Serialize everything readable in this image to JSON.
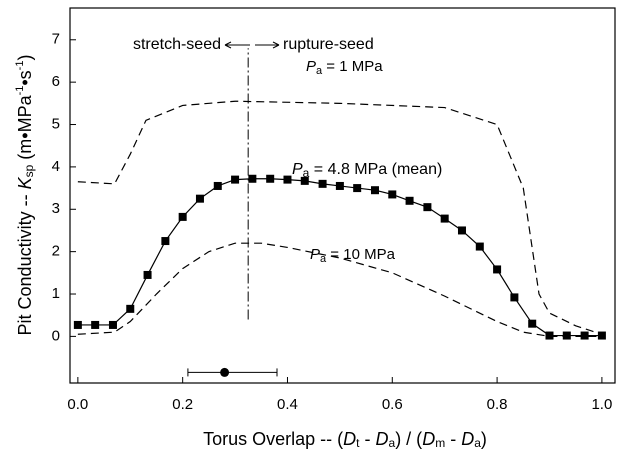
{
  "chart_data": {
    "type": "line",
    "y_label": [
      "Pit Conductivity -- ",
      "K",
      "sp",
      " (m•MPa",
      "-1",
      "•s",
      "-1",
      ")"
    ],
    "x_label": [
      "Torus Overlap -- (",
      "D",
      "t",
      " - ",
      "D",
      "a",
      ") / (",
      "D",
      "m",
      " - ",
      "D",
      "a",
      ")"
    ],
    "annotations": [
      "stretch-seed",
      "rupture-seed"
    ],
    "xlim": [
      -0.015,
      1.025
    ],
    "ylim": [
      -1.1,
      7.75
    ],
    "xticks": [
      {
        "value": 0,
        "label": "0.0"
      },
      {
        "value": 0.2,
        "label": "0.2"
      },
      {
        "value": 0.4,
        "label": "0.4"
      },
      {
        "value": 0.6,
        "label": "0.6"
      },
      {
        "value": 0.8,
        "label": "0.8"
      },
      {
        "value": 1,
        "label": "1.0"
      }
    ],
    "yticks": [
      0,
      1,
      2,
      3,
      4,
      5,
      6,
      7
    ],
    "series": [
      {
        "label": [
          "P",
          "a",
          " = 1 MPa"
        ],
        "color": "#000",
        "dashed": true,
        "markers": false,
        "x": [
          0,
          0.07,
          0.1,
          0.13,
          0.2,
          0.3,
          0.5,
          0.7,
          0.8,
          0.85,
          0.88,
          0.9,
          0.95,
          1.0
        ],
        "values": [
          3.65,
          3.6,
          4.3,
          5.1,
          5.45,
          5.55,
          5.5,
          5.4,
          5.0,
          3.5,
          1.0,
          0.55,
          0.25,
          0.05
        ]
      },
      {
        "label": [
          "P",
          "a",
          " = 4.8 MPa  (mean)"
        ],
        "color": "#000",
        "dashed": false,
        "markers": true,
        "x": [
          0,
          0.033,
          0.067,
          0.1,
          0.133,
          0.167,
          0.2,
          0.233,
          0.267,
          0.3,
          0.333,
          0.367,
          0.4,
          0.433,
          0.467,
          0.5,
          0.533,
          0.567,
          0.6,
          0.633,
          0.667,
          0.7,
          0.733,
          0.767,
          0.8,
          0.833,
          0.867,
          0.9,
          0.933,
          0.967,
          1.0
        ],
        "values": [
          0.27,
          0.27,
          0.27,
          0.65,
          1.45,
          2.25,
          2.82,
          3.25,
          3.55,
          3.7,
          3.72,
          3.72,
          3.7,
          3.67,
          3.6,
          3.55,
          3.5,
          3.45,
          3.35,
          3.2,
          3.05,
          2.78,
          2.5,
          2.12,
          1.58,
          0.92,
          0.3,
          0.02,
          0.02,
          0.02,
          0.02
        ]
      },
      {
        "label": [
          "P",
          "a",
          " = 10 MPa"
        ],
        "color": "#000",
        "dashed": true,
        "markers": false,
        "x": [
          0,
          0.07,
          0.1,
          0.15,
          0.2,
          0.25,
          0.3,
          0.35,
          0.4,
          0.5,
          0.6,
          0.7,
          0.8,
          0.85,
          0.9,
          1.0
        ],
        "values": [
          0.05,
          0.1,
          0.35,
          1.0,
          1.6,
          2.0,
          2.2,
          2.2,
          2.1,
          1.85,
          1.5,
          0.95,
          0.35,
          0.1,
          0.0,
          0.0
        ]
      }
    ],
    "divider": {
      "x": 0.325,
      "y": [
        0.4,
        6.8
      ]
    },
    "marker": {
      "x": 0.28,
      "y": -0.85,
      "xmin": 0.21,
      "xmax": 0.38
    }
  }
}
